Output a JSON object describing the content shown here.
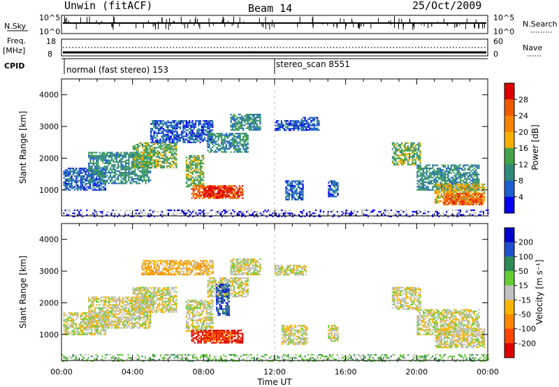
{
  "header": {
    "radar": "Unwin (fitACF)",
    "beam": "Beam 14",
    "date": "25/Oct/2009"
  },
  "strips": {
    "nsky_label": "N.Sky",
    "nsearch_label": "N.Search",
    "freq_label": "Freq.",
    "freq_unit": "[MHz]",
    "nave_label": "Nave",
    "cpid_label": "CPID",
    "nsky_ticks": [
      "10^5",
      "10^0"
    ],
    "nsearch_ticks": [
      "10^5",
      "10^0"
    ],
    "freq_ticks": [
      "18",
      "8"
    ],
    "nave_ticks": [
      "60",
      "0"
    ]
  },
  "cpid": {
    "programs": [
      {
        "name": "normal (fast stereo) 153",
        "start_hour": 0
      },
      {
        "name": "stereo_scan 8551",
        "start_hour": 12
      }
    ]
  },
  "colors": {
    "power": [
      "#0000ee",
      "#1c5fd0",
      "#2f8a7a",
      "#43a34a",
      "#f5b000",
      "#f58200",
      "#ef5a00",
      "#dd0000"
    ],
    "velocity": [
      "#dd0000",
      "#ff4500",
      "#ff8800",
      "#f5b400",
      "#c0c0c0",
      "#66cc33",
      "#2e8b57",
      "#1f4fcc",
      "#0000cc"
    ],
    "ground": "#bdbdbd"
  },
  "chart_data": [
    {
      "type": "heatmap",
      "panel": "power",
      "ylabel": "Slant Range [km]",
      "ylim": [
        180,
        4500
      ],
      "xlim": [
        0,
        24
      ],
      "ytick_labels": [
        "1000",
        "2000",
        "3000",
        "4000"
      ],
      "yticks": [
        1000,
        2000,
        3000,
        4000
      ],
      "colorbar_label": "Power [dB]",
      "colorbar_ticks": [
        "4",
        "8",
        "12",
        "16",
        "20",
        "24",
        "28"
      ],
      "regions": [
        {
          "t": [
            0.1,
            2.5
          ],
          "r": [
            1000,
            1700
          ],
          "level": 1
        },
        {
          "t": [
            1.5,
            5.0
          ],
          "r": [
            1200,
            2200
          ],
          "level": 2
        },
        {
          "t": [
            4.0,
            6.5
          ],
          "r": [
            1700,
            2500
          ],
          "level": 3
        },
        {
          "t": [
            5.0,
            8.5
          ],
          "r": [
            2500,
            3200
          ],
          "level": 1
        },
        {
          "t": [
            7.0,
            8.0
          ],
          "r": [
            1100,
            2100
          ],
          "level": 3
        },
        {
          "t": [
            7.3,
            10.2
          ],
          "r": [
            750,
            1150
          ],
          "level": 6
        },
        {
          "t": [
            8.0,
            9.6
          ],
          "r": [
            800,
            1100
          ],
          "level": 7
        },
        {
          "t": [
            8.2,
            10.5
          ],
          "r": [
            2200,
            2800
          ],
          "level": 2
        },
        {
          "t": [
            9.5,
            11.2
          ],
          "r": [
            2900,
            3400
          ],
          "level": 2
        },
        {
          "t": [
            12.0,
            13.8
          ],
          "r": [
            2900,
            3200
          ],
          "level": 1
        },
        {
          "t": [
            12.6,
            13.6
          ],
          "r": [
            700,
            1300
          ],
          "level": 1
        },
        {
          "t": [
            15.0,
            15.6
          ],
          "r": [
            800,
            1300
          ],
          "level": 1
        },
        {
          "t": [
            13.5,
            14.5
          ],
          "r": [
            2900,
            3300
          ],
          "level": 1
        },
        {
          "t": [
            18.6,
            20.2
          ],
          "r": [
            1800,
            2500
          ],
          "level": 3
        },
        {
          "t": [
            20.0,
            23.5
          ],
          "r": [
            1000,
            1800
          ],
          "level": 2
        },
        {
          "t": [
            21.0,
            23.8
          ],
          "r": [
            600,
            1200
          ],
          "level": 4
        },
        {
          "t": [
            21.5,
            23.7
          ],
          "r": [
            550,
            900
          ],
          "level": 6
        },
        {
          "t": [
            0.0,
            24.0
          ],
          "r": [
            180,
            380
          ],
          "level": 0
        }
      ]
    },
    {
      "type": "heatmap",
      "panel": "velocity",
      "ylabel": "Slant Range [km]",
      "xlabel": "Time UT",
      "ylim": [
        180,
        4500
      ],
      "xlim": [
        0,
        24
      ],
      "yticks": [
        1000,
        2000,
        3000,
        4000
      ],
      "ytick_labels": [
        "1000",
        "2000",
        "3000",
        "4000"
      ],
      "xticks": [
        0,
        4,
        8,
        12,
        16,
        20,
        24
      ],
      "xtick_labels": [
        "00:00",
        "04:00",
        "08:00",
        "12:00",
        "16:00",
        "20:00",
        "00:00"
      ],
      "colorbar_label": "Velocity [m s⁻¹]",
      "colorbar_ticks": [
        "200",
        "100",
        "50",
        "15",
        "-15",
        "-50",
        "-100",
        "-200"
      ],
      "regions": [
        {
          "t": [
            0.1,
            2.5
          ],
          "r": [
            1000,
            1700
          ],
          "level": 4
        },
        {
          "t": [
            1.5,
            5.0
          ],
          "r": [
            1200,
            2200
          ],
          "level": 4
        },
        {
          "t": [
            4.0,
            6.5
          ],
          "r": [
            1700,
            2500
          ],
          "level": 4
        },
        {
          "t": [
            4.5,
            8.5
          ],
          "r": [
            2900,
            3350
          ],
          "level": 3
        },
        {
          "t": [
            7.0,
            8.5
          ],
          "r": [
            1100,
            2100
          ],
          "level": 4
        },
        {
          "t": [
            7.3,
            10.2
          ],
          "r": [
            750,
            1150
          ],
          "level": 0
        },
        {
          "t": [
            8.0,
            9.6
          ],
          "r": [
            800,
            1100
          ],
          "level": 1
        },
        {
          "t": [
            8.2,
            10.5
          ],
          "r": [
            2200,
            2800
          ],
          "level": 4
        },
        {
          "t": [
            9.5,
            11.2
          ],
          "r": [
            2900,
            3400
          ],
          "level": 4
        },
        {
          "t": [
            8.7,
            9.4
          ],
          "r": [
            1600,
            2600
          ],
          "level": 7
        },
        {
          "t": [
            12.0,
            13.8
          ],
          "r": [
            2900,
            3200
          ],
          "level": 4
        },
        {
          "t": [
            12.4,
            13.8
          ],
          "r": [
            700,
            1300
          ],
          "level": 4
        },
        {
          "t": [
            15.0,
            15.6
          ],
          "r": [
            800,
            1300
          ],
          "level": 4
        },
        {
          "t": [
            18.6,
            20.2
          ],
          "r": [
            1800,
            2500
          ],
          "level": 4
        },
        {
          "t": [
            20.0,
            23.5
          ],
          "r": [
            1000,
            1800
          ],
          "level": 4
        },
        {
          "t": [
            21.0,
            23.8
          ],
          "r": [
            600,
            1200
          ],
          "level": 4
        },
        {
          "t": [
            0.0,
            24.0
          ],
          "r": [
            180,
            380
          ],
          "level": 5
        }
      ]
    }
  ]
}
